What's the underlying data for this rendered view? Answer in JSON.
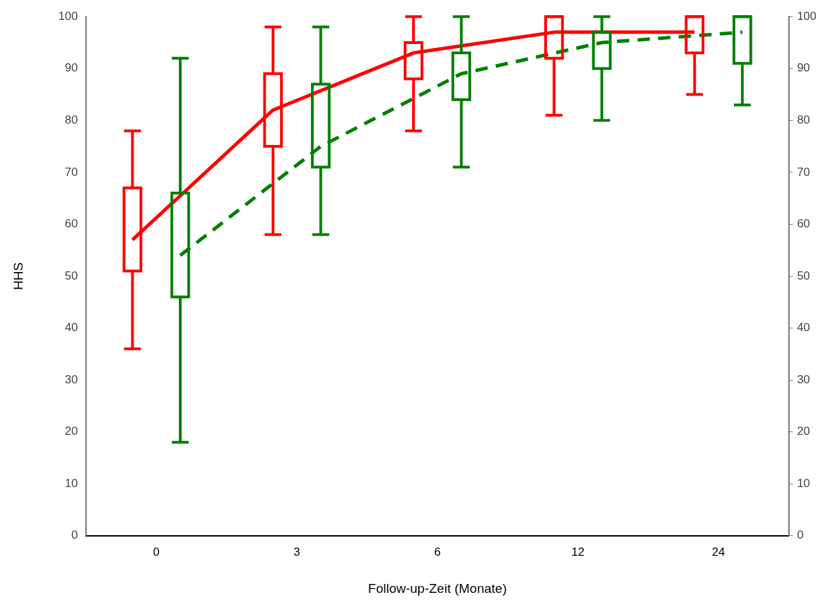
{
  "chart_data": {
    "type": "box",
    "xlabel": "Follow-up-Zeit (Monate)",
    "ylabel": "HHS",
    "categories": [
      "0",
      "3",
      "6",
      "12",
      "24"
    ],
    "ylim": [
      0,
      100
    ],
    "yticks": [
      0,
      10,
      20,
      30,
      40,
      50,
      60,
      70,
      80,
      90,
      100
    ],
    "y2lim": [
      0,
      100
    ],
    "y2ticks": [
      0,
      10,
      20,
      30,
      40,
      50,
      60,
      70,
      80,
      90,
      100
    ],
    "grid": false,
    "legend": false,
    "marker": "none",
    "series": [
      {
        "color": "#ff0000",
        "boxes": [
          {
            "low": 36,
            "q1": 51,
            "q3": 67,
            "high": 78
          },
          {
            "low": 58,
            "q1": 75,
            "q3": 89,
            "high": 98
          },
          {
            "low": 78,
            "q1": 88,
            "q3": 95,
            "high": 100
          },
          {
            "low": 81,
            "q1": 92,
            "q3": 100,
            "high": 100
          },
          {
            "low": 85,
            "q1": 93,
            "q3": 100,
            "high": 100
          }
        ]
      },
      {
        "color": "#008000",
        "boxes": [
          {
            "low": 18,
            "q1": 46,
            "q3": 66,
            "high": 92
          },
          {
            "low": 58,
            "q1": 71,
            "q3": 87,
            "high": 98
          },
          {
            "low": 71,
            "q1": 84,
            "q3": 93,
            "high": 100
          },
          {
            "low": 80,
            "q1": 90,
            "q3": 97,
            "high": 100
          },
          {
            "low": 83,
            "q1": 91,
            "q3": 100,
            "high": 100
          }
        ]
      },
      {
        "type": "line",
        "color": "#ff0000",
        "line_style": "solid",
        "values": [
          57,
          82,
          93,
          97,
          97
        ]
      },
      {
        "type": "line",
        "color": "#008000",
        "line_style": "dashed",
        "values": [
          54,
          75,
          89,
          95,
          97
        ]
      }
    ]
  }
}
